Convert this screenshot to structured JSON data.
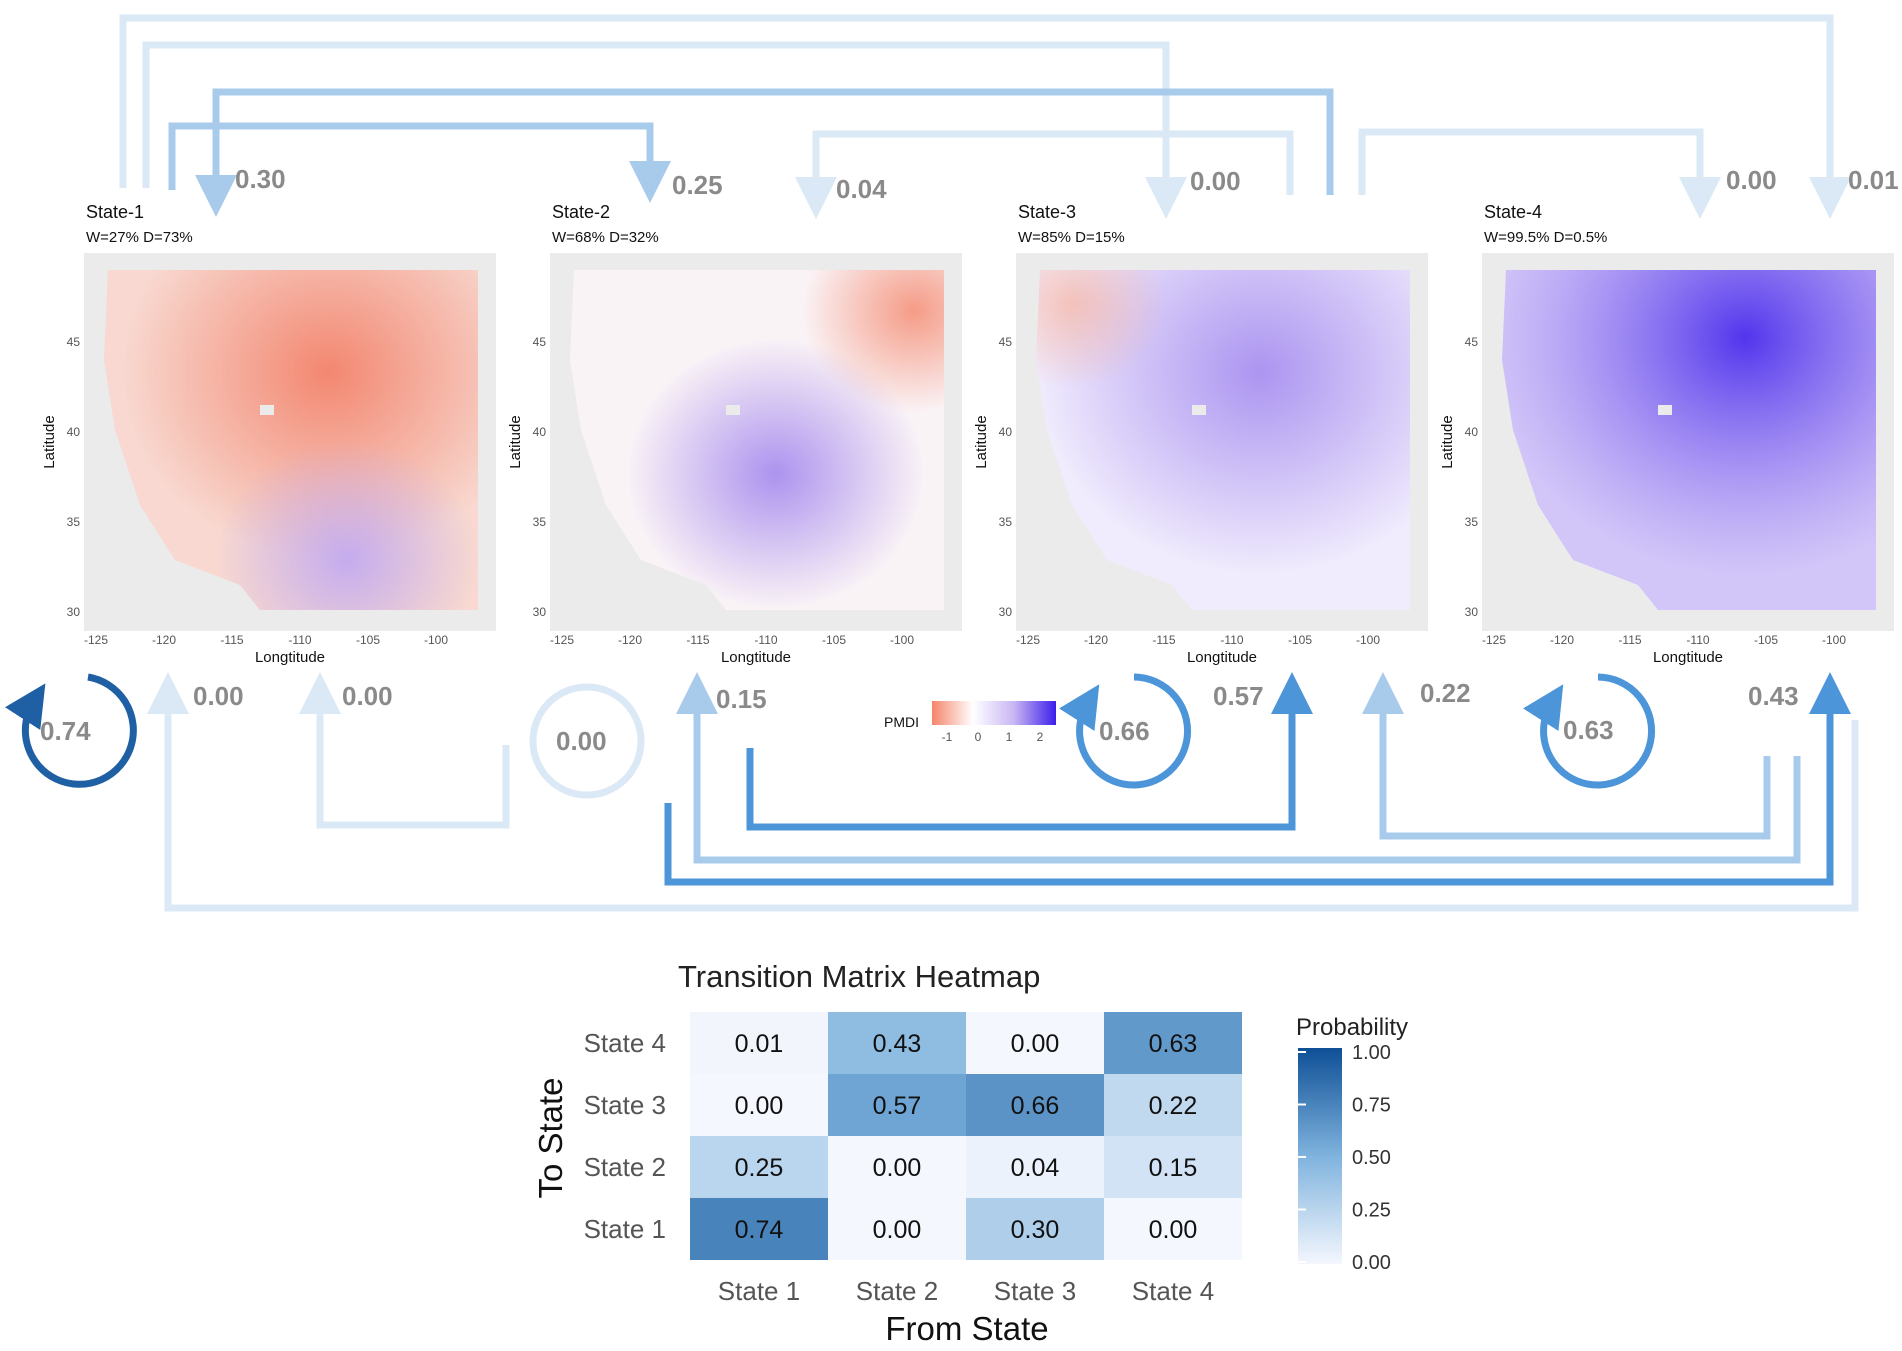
{
  "figure": {
    "states": [
      {
        "title": "State-1",
        "subtitle": "W=27% D=73%",
        "self_prob": "0.74"
      },
      {
        "title": "State-2",
        "subtitle": "W=68% D=32%",
        "self_prob": "0.00"
      },
      {
        "title": "State-3",
        "subtitle": "W=85% D=15%",
        "self_prob": "0.66"
      },
      {
        "title": "State-4",
        "subtitle": "W=99.5% D=0.5%",
        "self_prob": "0.63"
      }
    ],
    "map_axes": {
      "xlabel": "Longtitude",
      "ylabel": "Latitude",
      "x_ticks": [
        "-125",
        "-120",
        "-115",
        "-110",
        "-105",
        "-100"
      ],
      "y_ticks": [
        "45",
        "40",
        "35",
        "30"
      ]
    },
    "top_arrow_labels": [
      "0.30",
      "0.25",
      "0.04",
      "0.00",
      "0.00",
      "0.01"
    ],
    "bottom_arrow_labels": [
      "0.00",
      "0.00",
      "0.15",
      "0.57",
      "0.22",
      "0.43"
    ],
    "pmdi_legend": {
      "label": "PMDI",
      "ticks": [
        "-1",
        "0",
        "1",
        "2"
      ]
    },
    "colors": {
      "drought": "#f26a4b",
      "wet": "#4b2ff0",
      "arrow_light": "#dbe8f6",
      "arrow_mid": "#a9cbeb",
      "arrow_strong": "#4d95d9",
      "arrow_dark": "#1f5fa3"
    }
  },
  "chart_data": {
    "type": "heatmap",
    "title": "Transition Matrix Heatmap",
    "xlabel": "From State",
    "ylabel": "To State",
    "x_categories": [
      "State 1",
      "State 2",
      "State 3",
      "State 4"
    ],
    "y_categories": [
      "State 1",
      "State 2",
      "State 3",
      "State 4"
    ],
    "cells": [
      {
        "from": "State 1",
        "to": "State 1",
        "value": 0.74,
        "label": "0.74"
      },
      {
        "from": "State 1",
        "to": "State 2",
        "value": 0.25,
        "label": "0.25"
      },
      {
        "from": "State 1",
        "to": "State 3",
        "value": 0.0,
        "label": "0.00"
      },
      {
        "from": "State 1",
        "to": "State 4",
        "value": 0.01,
        "label": "0.01"
      },
      {
        "from": "State 2",
        "to": "State 1",
        "value": 0.0,
        "label": "0.00"
      },
      {
        "from": "State 2",
        "to": "State 2",
        "value": 0.0,
        "label": "0.00"
      },
      {
        "from": "State 2",
        "to": "State 3",
        "value": 0.57,
        "label": "0.57"
      },
      {
        "from": "State 2",
        "to": "State 4",
        "value": 0.43,
        "label": "0.43"
      },
      {
        "from": "State 3",
        "to": "State 1",
        "value": 0.3,
        "label": "0.30"
      },
      {
        "from": "State 3",
        "to": "State 2",
        "value": 0.04,
        "label": "0.04"
      },
      {
        "from": "State 3",
        "to": "State 3",
        "value": 0.66,
        "label": "0.66"
      },
      {
        "from": "State 3",
        "to": "State 4",
        "value": 0.0,
        "label": "0.00"
      },
      {
        "from": "State 4",
        "to": "State 1",
        "value": 0.0,
        "label": "0.00"
      },
      {
        "from": "State 4",
        "to": "State 2",
        "value": 0.15,
        "label": "0.15"
      },
      {
        "from": "State 4",
        "to": "State 3",
        "value": 0.22,
        "label": "0.22"
      },
      {
        "from": "State 4",
        "to": "State 4",
        "value": 0.63,
        "label": "0.63"
      }
    ],
    "legend": {
      "title": "Probability",
      "range": [
        0,
        1
      ],
      "ticks": [
        "1.00",
        "0.75",
        "0.50",
        "0.25",
        "0.00"
      ]
    }
  }
}
